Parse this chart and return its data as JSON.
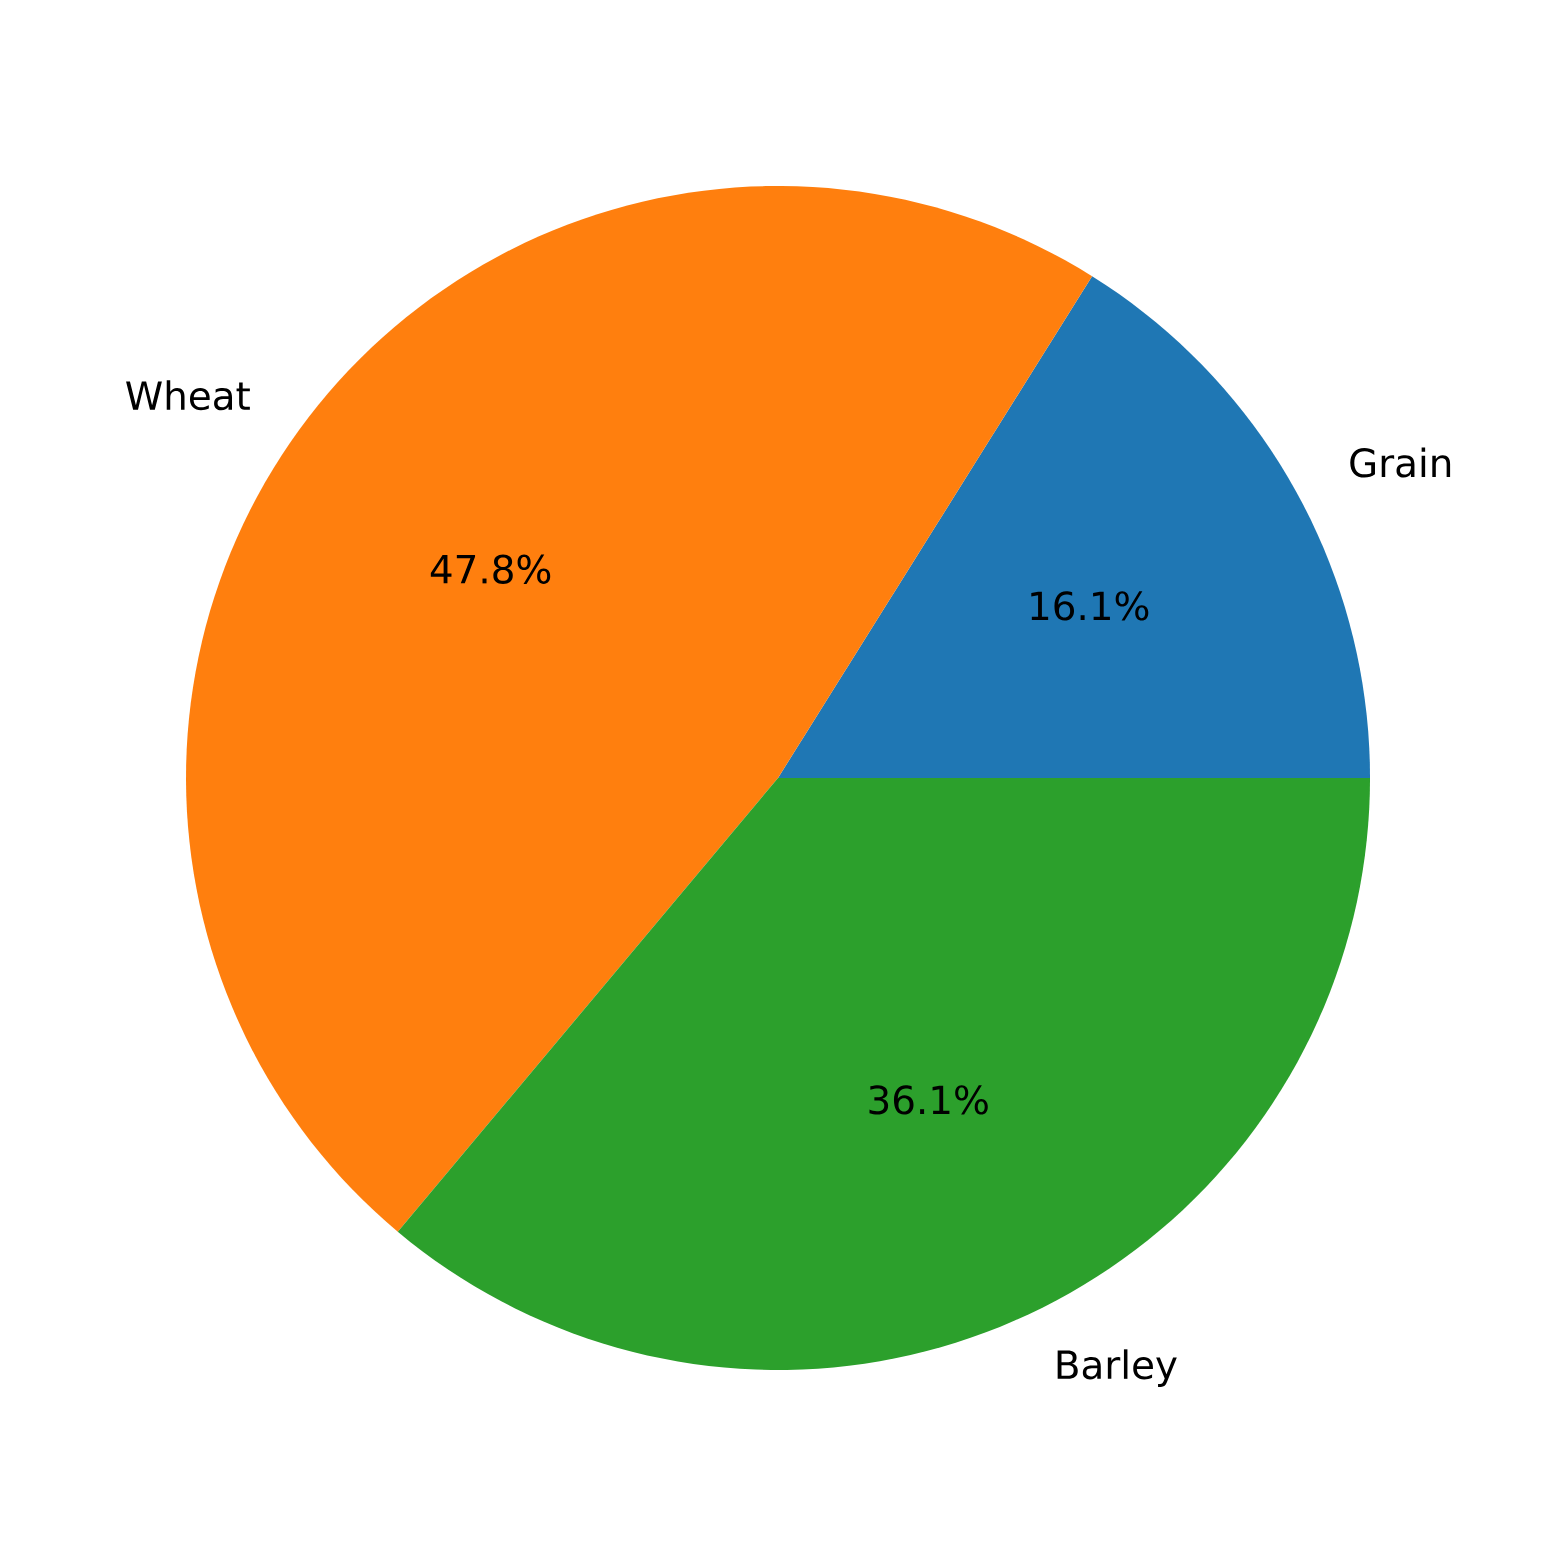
{
  "chart_data": {
    "type": "pie",
    "categories": [
      "Grain",
      "Wheat",
      "Barley"
    ],
    "values": [
      16.1,
      47.8,
      36.1
    ],
    "colors": [
      "#1f77b4",
      "#ff7f0e",
      "#2ca02c"
    ],
    "value_labels": [
      "16.1%",
      "47.8%",
      "36.1%"
    ]
  }
}
